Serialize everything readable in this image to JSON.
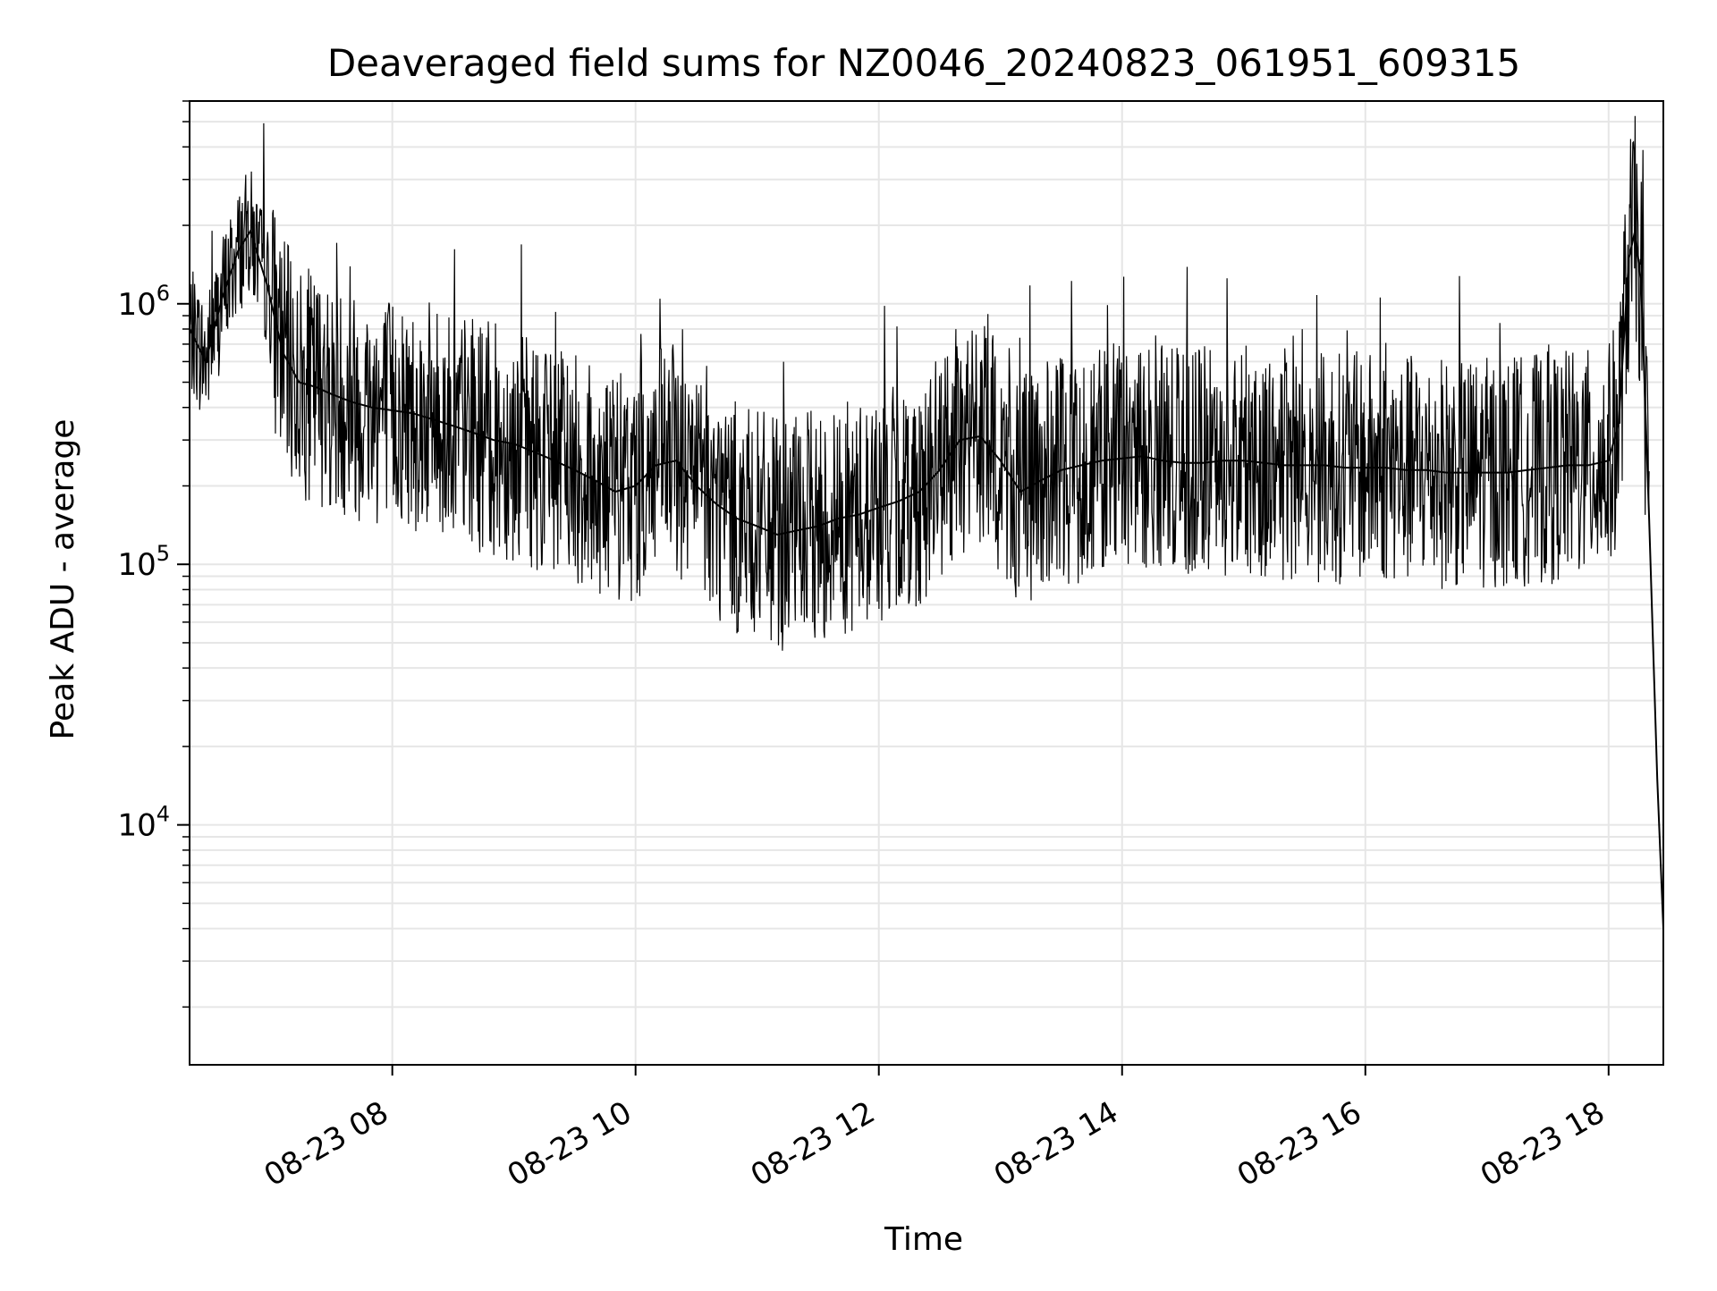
{
  "chart_data": {
    "type": "line",
    "title": "Deaveraged field sums for NZ0046_20240823_061951_609315",
    "xlabel": "Time",
    "ylabel": "Peak ADU - average",
    "y_scale": "log",
    "grid": true,
    "legend": "none",
    "colors": {
      "line": "#000000",
      "grid": "#e6e6e6",
      "axes": "#000000"
    },
    "x_ticks": [
      {
        "label": "08-23 08",
        "hour": 8
      },
      {
        "label": "08-23 10",
        "hour": 10
      },
      {
        "label": "08-23 12",
        "hour": 12
      },
      {
        "label": "08-23 14",
        "hour": 14
      },
      {
        "label": "08-23 16",
        "hour": 16
      },
      {
        "label": "08-23 18",
        "hour": 18
      }
    ],
    "y_ticks": [
      {
        "base": "10",
        "exp": "4",
        "value": 10000
      },
      {
        "base": "10",
        "exp": "5",
        "value": 100000
      },
      {
        "base": "10",
        "exp": "6",
        "value": 1000000
      }
    ],
    "xlim": [
      "2024-08-23 06:20",
      "2024-08-23 18:27"
    ],
    "ylim": [
      1200,
      6000000
    ],
    "series": [
      {
        "points": [
          [
            "06:20",
            800000
          ],
          [
            "06:28",
            600000
          ],
          [
            "06:36",
            1050000
          ],
          [
            "06:44",
            1600000
          ],
          [
            "06:50",
            1900000
          ],
          [
            "06:58",
            1200000
          ],
          [
            "07:06",
            650000
          ],
          [
            "07:14",
            500000
          ],
          [
            "07:22",
            480000
          ],
          [
            "07:30",
            450000
          ],
          [
            "07:40",
            420000
          ],
          [
            "07:50",
            400000
          ],
          [
            "08:00",
            390000
          ],
          [
            "08:10",
            380000
          ],
          [
            "08:20",
            360000
          ],
          [
            "08:30",
            340000
          ],
          [
            "08:40",
            320000
          ],
          [
            "08:50",
            300000
          ],
          [
            "09:00",
            290000
          ],
          [
            "09:10",
            270000
          ],
          [
            "09:20",
            250000
          ],
          [
            "09:30",
            230000
          ],
          [
            "09:40",
            210000
          ],
          [
            "09:50",
            190000
          ],
          [
            "10:00",
            200000
          ],
          [
            "10:10",
            240000
          ],
          [
            "10:20",
            250000
          ],
          [
            "10:30",
            200000
          ],
          [
            "10:40",
            170000
          ],
          [
            "10:50",
            150000
          ],
          [
            "11:00",
            140000
          ],
          [
            "11:10",
            130000
          ],
          [
            "11:20",
            135000
          ],
          [
            "11:30",
            140000
          ],
          [
            "11:40",
            150000
          ],
          [
            "11:50",
            155000
          ],
          [
            "12:00",
            165000
          ],
          [
            "12:10",
            175000
          ],
          [
            "12:20",
            190000
          ],
          [
            "12:30",
            230000
          ],
          [
            "12:40",
            300000
          ],
          [
            "12:50",
            310000
          ],
          [
            "13:00",
            250000
          ],
          [
            "13:10",
            190000
          ],
          [
            "13:20",
            210000
          ],
          [
            "13:30",
            230000
          ],
          [
            "13:40",
            240000
          ],
          [
            "13:50",
            250000
          ],
          [
            "14:00",
            255000
          ],
          [
            "14:10",
            260000
          ],
          [
            "14:20",
            250000
          ],
          [
            "14:30",
            245000
          ],
          [
            "14:40",
            245000
          ],
          [
            "14:50",
            250000
          ],
          [
            "15:00",
            250000
          ],
          [
            "15:10",
            245000
          ],
          [
            "15:20",
            240000
          ],
          [
            "15:30",
            240000
          ],
          [
            "15:40",
            240000
          ],
          [
            "15:50",
            235000
          ],
          [
            "16:00",
            235000
          ],
          [
            "16:10",
            235000
          ],
          [
            "16:20",
            230000
          ],
          [
            "16:30",
            230000
          ],
          [
            "16:40",
            225000
          ],
          [
            "16:50",
            225000
          ],
          [
            "17:00",
            225000
          ],
          [
            "17:10",
            225000
          ],
          [
            "17:20",
            230000
          ],
          [
            "17:30",
            235000
          ],
          [
            "17:40",
            240000
          ],
          [
            "17:50",
            240000
          ],
          [
            "18:00",
            250000
          ],
          [
            "18:05",
            350000
          ],
          [
            "18:10",
            1500000
          ],
          [
            "18:13",
            1900000
          ],
          [
            "18:16",
            1200000
          ],
          [
            "18:20",
            150000
          ],
          [
            "18:24",
            15000
          ],
          [
            "18:27",
            4000
          ]
        ]
      }
    ]
  }
}
